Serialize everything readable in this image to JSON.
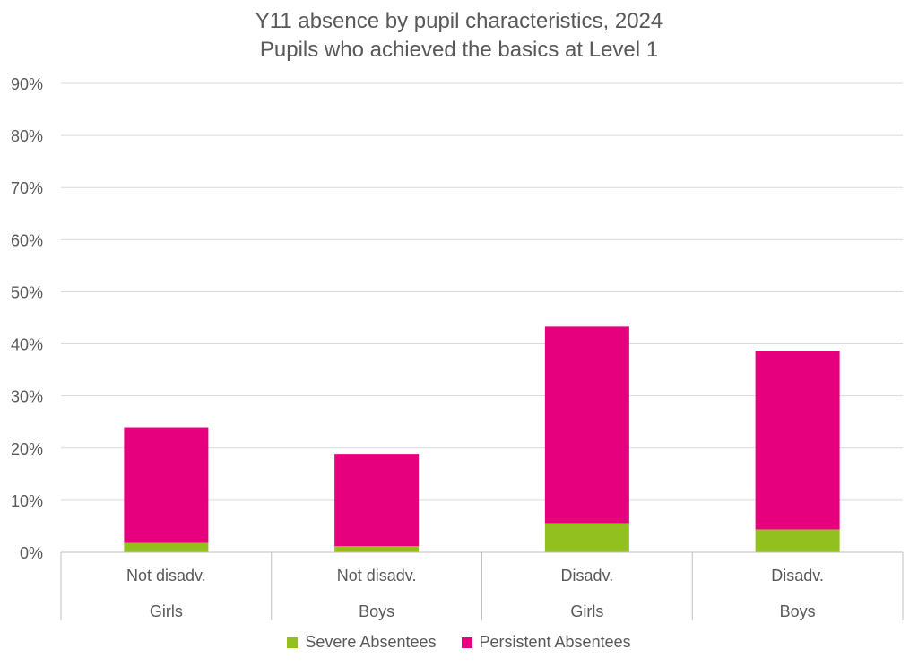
{
  "chart_data": {
    "type": "bar",
    "stacked": true,
    "title": "Y11 absence by pupil characteristics, 2024",
    "subtitle": "Pupils who achieved the basics at Level 1",
    "categories": [
      {
        "group": "Not disadv.",
        "sub": "Girls"
      },
      {
        "group": "Not disadv.",
        "sub": "Boys"
      },
      {
        "group": "Disadv.",
        "sub": "Girls"
      },
      {
        "group": "Disadv.",
        "sub": "Boys"
      }
    ],
    "series": [
      {
        "name": "Severe Absentees",
        "color": "#92c01f",
        "values": [
          1.8,
          1.2,
          5.6,
          4.4
        ]
      },
      {
        "name": "Persistent Absentees",
        "color": "#e6007e",
        "values": [
          22.2,
          17.7,
          37.7,
          34.3
        ]
      }
    ],
    "ylim": [
      0,
      90
    ],
    "yticks": [
      "0%",
      "10%",
      "20%",
      "30%",
      "40%",
      "50%",
      "60%",
      "70%",
      "80%",
      "90%"
    ],
    "grid": true,
    "legend_position": "bottom"
  }
}
